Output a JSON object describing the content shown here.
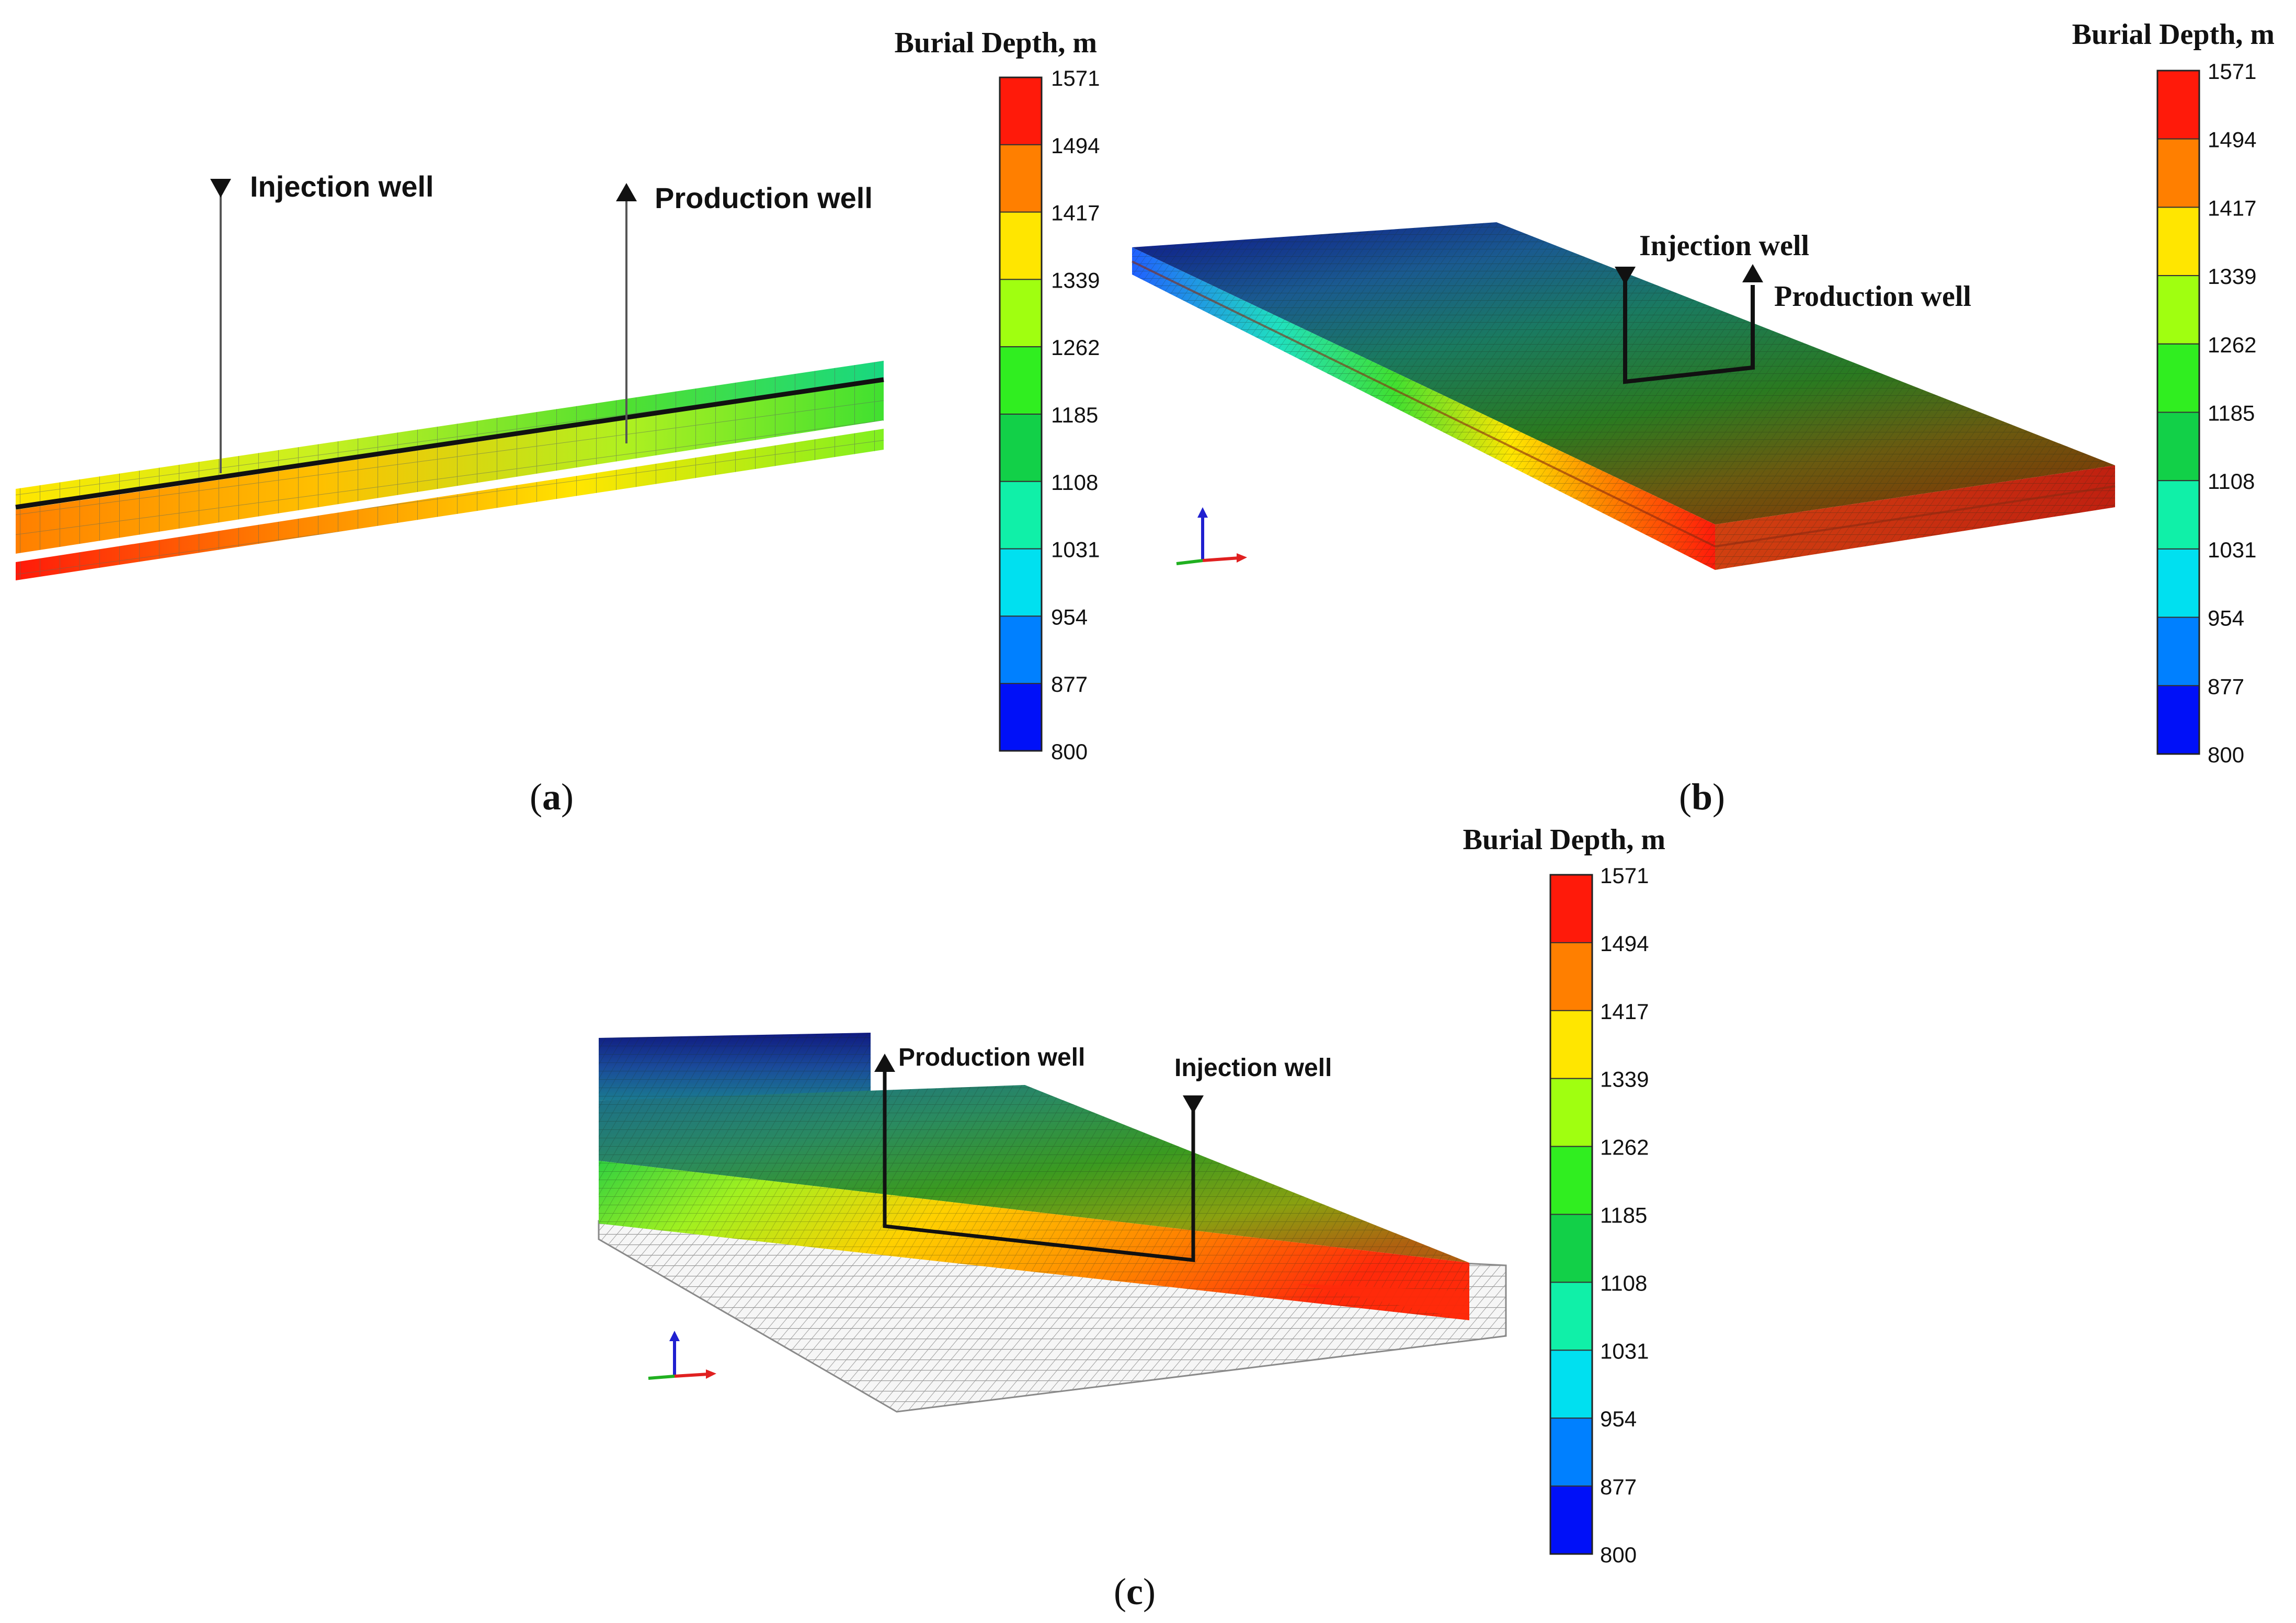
{
  "legend": {
    "title": "Burial Depth, m",
    "ticks": [
      "1571",
      "1494",
      "1417",
      "1339",
      "1262",
      "1185",
      "1108",
      "1031",
      "954",
      "877",
      "800"
    ],
    "colors": [
      "#ff1a0a",
      "#ff7f00",
      "#ffe600",
      "#a0ff10",
      "#30ee20",
      "#12d048",
      "#10f0a8",
      "#00e0f0",
      "#0080ff",
      "#0010f8"
    ]
  },
  "panels": {
    "a": {
      "caption": {
        "open": "(",
        "letter": "a",
        "close": ")"
      },
      "injection_label": "Injection well",
      "production_label": "Production well"
    },
    "b": {
      "caption": {
        "open": "(",
        "letter": "b",
        "close": ")"
      },
      "injection_label": "Injection well",
      "production_label": "Production well"
    },
    "c": {
      "caption": {
        "open": "(",
        "letter": "c",
        "close": ")"
      },
      "injection_label": "Injection well",
      "production_label": "Production well"
    }
  },
  "axis_triad": {
    "x_color": "#e02020",
    "y_color": "#20b020",
    "z_color": "#2020d0"
  }
}
